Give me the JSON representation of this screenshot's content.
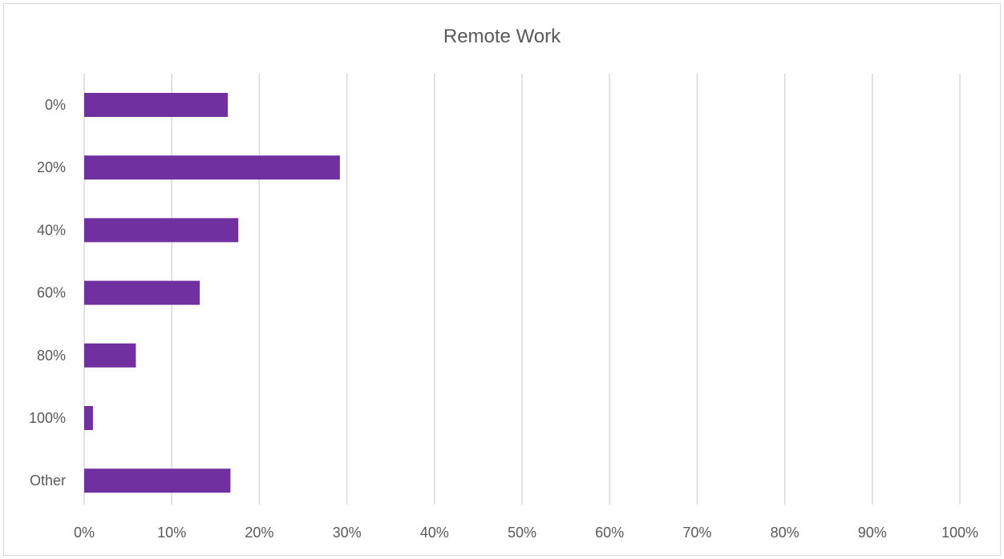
{
  "chart_data": {
    "type": "bar",
    "orientation": "horizontal",
    "title": "Remote Work",
    "xlabel": "",
    "ylabel": "",
    "categories": [
      "0%",
      "20%",
      "40%",
      "60%",
      "80%",
      "100%",
      "Other"
    ],
    "values": [
      0.164,
      0.292,
      0.176,
      0.132,
      0.059,
      0.01,
      0.167
    ],
    "xlim": [
      0,
      1
    ],
    "x_ticks": [
      "0%",
      "10%",
      "20%",
      "30%",
      "40%",
      "50%",
      "60%",
      "70%",
      "80%",
      "90%",
      "100%"
    ],
    "grid": "vertical",
    "legend": "none",
    "bar_color": "#7030a0"
  }
}
